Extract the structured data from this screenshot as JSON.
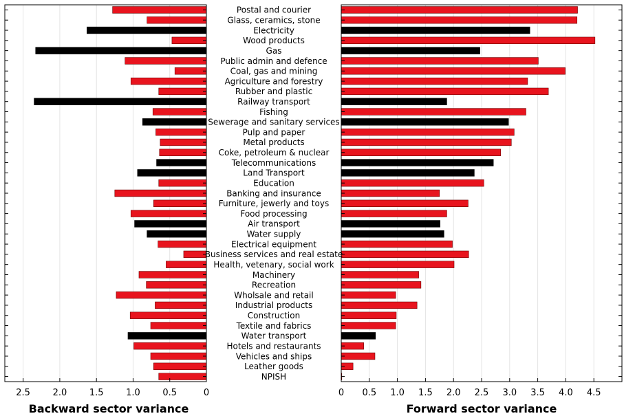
{
  "chart_data": [
    {
      "type": "bar",
      "orientation": "horizontal",
      "panel": "left",
      "xlabel": "Backward sector variance",
      "xlim": [
        0,
        2.75
      ],
      "x_reversed": true,
      "xticks": [
        "2.5",
        "2.0",
        "1.5",
        "1.0",
        "0.5",
        "0"
      ],
      "xtick_values": [
        2.5,
        2.0,
        1.5,
        1.0,
        0.5,
        0
      ],
      "grid": "vertical",
      "categories": [
        "Postal and courier",
        "Glass, ceramics, stone",
        "Electricity",
        "Wood products",
        "Gas",
        "Public admin and defence",
        "Coal, gas and mining",
        "Agriculture and forestry",
        "Rubber and plastic",
        "Railway transport",
        "Fishing",
        "Sewerage and sanitary services",
        "Pulp and paper",
        "Metal products",
        "Coke, petroleum & nuclear",
        "Telecommunications",
        "Land Transport",
        "Education",
        "Banking and insurance",
        "Furniture, jewerly and toys",
        "Food processing",
        "Air transport",
        "Water supply",
        "Electrical equipment",
        "Business services and real estate",
        "Health, vetenary, social work",
        "Machinery",
        "Recreation",
        "Wholsale and retail",
        "Industrial products",
        "Construction",
        "Textile and fabrics",
        "Water transport",
        "Hotels and restaurants",
        "Vehicles and ships",
        "Leather goods",
        "NPISH"
      ],
      "values": [
        1.28,
        0.81,
        1.63,
        0.47,
        2.33,
        1.11,
        0.43,
        1.03,
        0.65,
        2.35,
        0.73,
        0.87,
        0.69,
        0.63,
        0.64,
        0.68,
        0.94,
        0.65,
        1.25,
        0.72,
        1.03,
        0.98,
        0.81,
        0.66,
        0.31,
        0.55,
        0.92,
        0.82,
        1.23,
        0.7,
        1.04,
        0.76,
        1.07,
        0.99,
        0.76,
        0.72,
        0.65
      ],
      "highlight": [
        false,
        false,
        true,
        false,
        true,
        false,
        false,
        false,
        false,
        true,
        false,
        true,
        false,
        false,
        false,
        true,
        true,
        false,
        false,
        false,
        false,
        true,
        true,
        false,
        false,
        false,
        false,
        false,
        false,
        false,
        false,
        false,
        true,
        false,
        false,
        false,
        false
      ],
      "colors": {
        "normal": "#e8141e",
        "highlight": "#000000",
        "edge": "#6b0000"
      }
    },
    {
      "type": "bar",
      "orientation": "horizontal",
      "panel": "right",
      "xlabel": "Forward sector variance",
      "xlim": [
        0,
        5.0
      ],
      "x_reversed": false,
      "xticks": [
        "0",
        "0.5",
        "1.0",
        "1.5",
        "2.0",
        "2.5",
        "3.0",
        "3.5",
        "4.0",
        "4.5"
      ],
      "xtick_values": [
        0,
        0.5,
        1.0,
        1.5,
        2.0,
        2.5,
        3.0,
        3.5,
        4.0,
        4.5
      ],
      "grid": "vertical",
      "categories": [
        "Postal and courier",
        "Glass, ceramics, stone",
        "Electricity",
        "Wood products",
        "Gas",
        "Public admin and defence",
        "Coal, gas and mining",
        "Agriculture and forestry",
        "Rubber and plastic",
        "Railway transport",
        "Fishing",
        "Sewerage and sanitary services",
        "Pulp and paper",
        "Metal products",
        "Coke, petroleum & nuclear",
        "Telecommunications",
        "Land Transport",
        "Education",
        "Banking and insurance",
        "Furniture, jewerly and toys",
        "Food processing",
        "Air transport",
        "Water supply",
        "Electrical equipment",
        "Business services and real estate",
        "Health, vetenary, social work",
        "Machinery",
        "Recreation",
        "Wholsale and retail",
        "Industrial products",
        "Construction",
        "Textile and fabrics",
        "Water transport",
        "Hotels and restaurants",
        "Vehicles and ships",
        "Leather goods",
        "NPISH"
      ],
      "values": [
        4.21,
        4.2,
        3.36,
        4.52,
        2.47,
        3.51,
        3.99,
        3.32,
        3.69,
        1.88,
        3.29,
        2.98,
        3.08,
        3.03,
        2.84,
        2.71,
        2.37,
        2.54,
        1.75,
        2.26,
        1.88,
        1.76,
        1.83,
        1.98,
        2.27,
        2.01,
        1.38,
        1.42,
        0.97,
        1.35,
        0.98,
        0.97,
        0.61,
        0.4,
        0.6,
        0.21,
        0.01
      ],
      "highlight": [
        false,
        false,
        true,
        false,
        true,
        false,
        false,
        false,
        false,
        true,
        false,
        true,
        false,
        false,
        false,
        true,
        true,
        false,
        false,
        false,
        false,
        true,
        true,
        false,
        false,
        false,
        false,
        false,
        false,
        false,
        false,
        false,
        true,
        false,
        false,
        false,
        false
      ],
      "colors": {
        "normal": "#e8141e",
        "highlight": "#000000",
        "edge": "#6b0000"
      }
    }
  ]
}
